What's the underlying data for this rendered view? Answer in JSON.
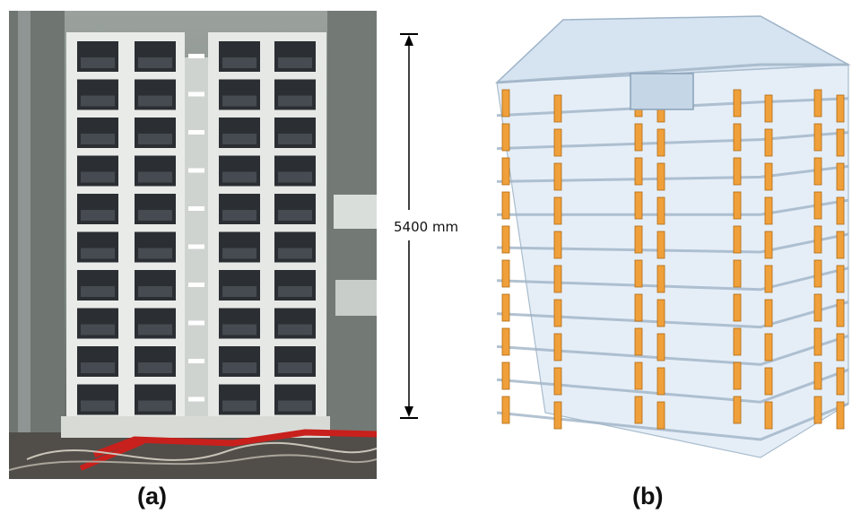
{
  "figure": {
    "dimension_label": "5400 mm",
    "caption_a": "(a)",
    "caption_b": "(b)"
  },
  "colors": {
    "wall_orange": "#f0a03a",
    "glass_blue": "#bcd4ea",
    "photo_bg": "#8a8f8c",
    "model_frame": "#c7cfd8"
  },
  "icons": {
    "dimension_arrow": "vertical-double-arrow"
  }
}
